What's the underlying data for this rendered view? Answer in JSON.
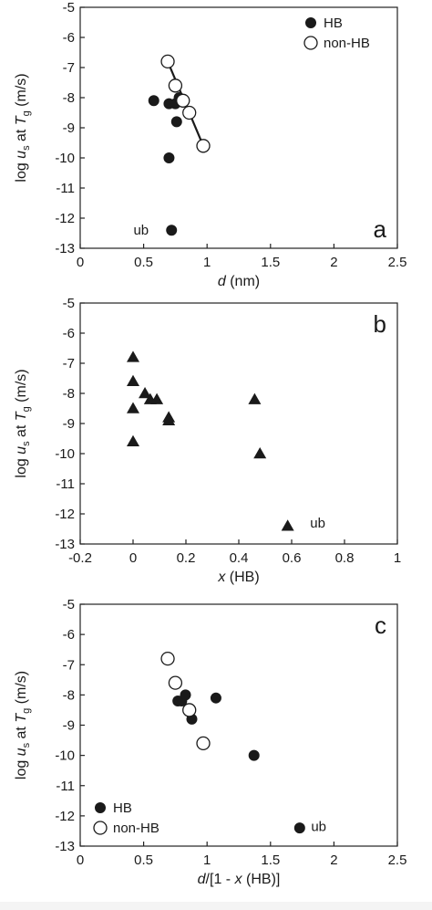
{
  "chart_data": [
    {
      "type": "scatter",
      "panel_letter": "a",
      "xlabel": "d (nm)",
      "ylabel": "log us at Tg (m/s)",
      "xlim": [
        0,
        2.5
      ],
      "ylim": [
        -13,
        -5
      ],
      "x_ticks": [
        0,
        0.5,
        1,
        1.5,
        2,
        2.5
      ],
      "x_tick_labels": [
        "0",
        "0.5",
        "1",
        "1.5",
        "2",
        "2.5"
      ],
      "y_ticks": [
        -5,
        -6,
        -7,
        -8,
        -9,
        -10,
        -11,
        -12,
        -13
      ],
      "y_tick_labels": [
        "-5",
        "-6",
        "-7",
        "-8",
        "-9",
        "-10",
        "-11",
        "-12",
        "-13"
      ],
      "grid": false,
      "legend_position": "top-right",
      "series": [
        {
          "name": "HB",
          "marker": "filled-circle",
          "points": [
            [
              0.58,
              -8.1
            ],
            [
              0.7,
              -8.2
            ],
            [
              0.75,
              -8.2
            ],
            [
              0.78,
              -8.0
            ],
            [
              0.76,
              -8.8
            ],
            [
              0.7,
              -10.0
            ],
            [
              0.72,
              -12.4
            ]
          ]
        },
        {
          "name": "non-HB",
          "marker": "open-circle",
          "points": [
            [
              0.69,
              -6.8
            ],
            [
              0.75,
              -7.6
            ],
            [
              0.81,
              -8.1
            ],
            [
              0.86,
              -8.5
            ],
            [
              0.97,
              -9.6
            ]
          ]
        }
      ],
      "fit_line": [
        [
          0.69,
          -6.8
        ],
        [
          0.97,
          -9.6
        ]
      ],
      "annotations": [
        {
          "text": "ub",
          "x": 0.42,
          "y": -12.4
        }
      ]
    },
    {
      "type": "scatter",
      "panel_letter": "b",
      "xlabel": "x (HB)",
      "ylabel": "log us at Tg (m/s)",
      "xlim": [
        -0.2,
        1
      ],
      "ylim": [
        -13,
        -5
      ],
      "x_ticks": [
        -0.2,
        0,
        0.2,
        0.4,
        0.6,
        0.8,
        1
      ],
      "x_tick_labels": [
        "-0.2",
        "0",
        "0.2",
        "0.4",
        "0.6",
        "0.8",
        "1"
      ],
      "y_ticks": [
        -5,
        -6,
        -7,
        -8,
        -9,
        -10,
        -11,
        -12,
        -13
      ],
      "y_tick_labels": [
        "-5",
        "-6",
        "-7",
        "-8",
        "-9",
        "-10",
        "-11",
        "-12",
        "-13"
      ],
      "grid": false,
      "series": [
        {
          "marker": "filled-triangle",
          "points": [
            [
              0.0,
              -6.8
            ],
            [
              0.0,
              -7.6
            ],
            [
              0.0,
              -8.5
            ],
            [
              0.0,
              -9.6
            ],
            [
              0.045,
              -8.0
            ],
            [
              0.065,
              -8.2
            ],
            [
              0.09,
              -8.2
            ],
            [
              0.135,
              -8.8
            ],
            [
              0.135,
              -8.9
            ],
            [
              0.46,
              -8.2
            ],
            [
              0.48,
              -10.0
            ],
            [
              0.585,
              -12.4
            ]
          ]
        }
      ],
      "annotations": [
        {
          "text": "ub",
          "x": 0.67,
          "y": -12.3
        }
      ]
    },
    {
      "type": "scatter",
      "panel_letter": "c",
      "xlabel": "d/[1 - x (HB)]",
      "ylabel": "log us at Tg (m/s)",
      "xlim": [
        0,
        2.5
      ],
      "ylim": [
        -13,
        -5
      ],
      "x_ticks": [
        0,
        0.5,
        1,
        1.5,
        2,
        2.5
      ],
      "x_tick_labels": [
        "0",
        "0.5",
        "1",
        "1.5",
        "2",
        "2.5"
      ],
      "y_ticks": [
        -5,
        -6,
        -7,
        -8,
        -9,
        -10,
        -11,
        -12,
        -13
      ],
      "y_tick_labels": [
        "-5",
        "-6",
        "-7",
        "-8",
        "-9",
        "-10",
        "-11",
        "-12",
        "-13"
      ],
      "grid": false,
      "legend_position": "bottom-left",
      "series": [
        {
          "name": "HB",
          "marker": "filled-circle",
          "points": [
            [
              0.77,
              -8.2
            ],
            [
              0.8,
              -8.2
            ],
            [
              0.83,
              -8.0
            ],
            [
              0.88,
              -8.8
            ],
            [
              1.07,
              -8.1
            ],
            [
              1.37,
              -10.0
            ],
            [
              1.73,
              -12.4
            ]
          ]
        },
        {
          "name": "non-HB",
          "marker": "open-circle",
          "points": [
            [
              0.69,
              -6.8
            ],
            [
              0.75,
              -7.6
            ],
            [
              0.86,
              -8.5
            ],
            [
              0.97,
              -9.6
            ]
          ]
        }
      ],
      "annotations": [
        {
          "text": "ub",
          "x": 1.82,
          "y": -12.35
        }
      ]
    }
  ]
}
